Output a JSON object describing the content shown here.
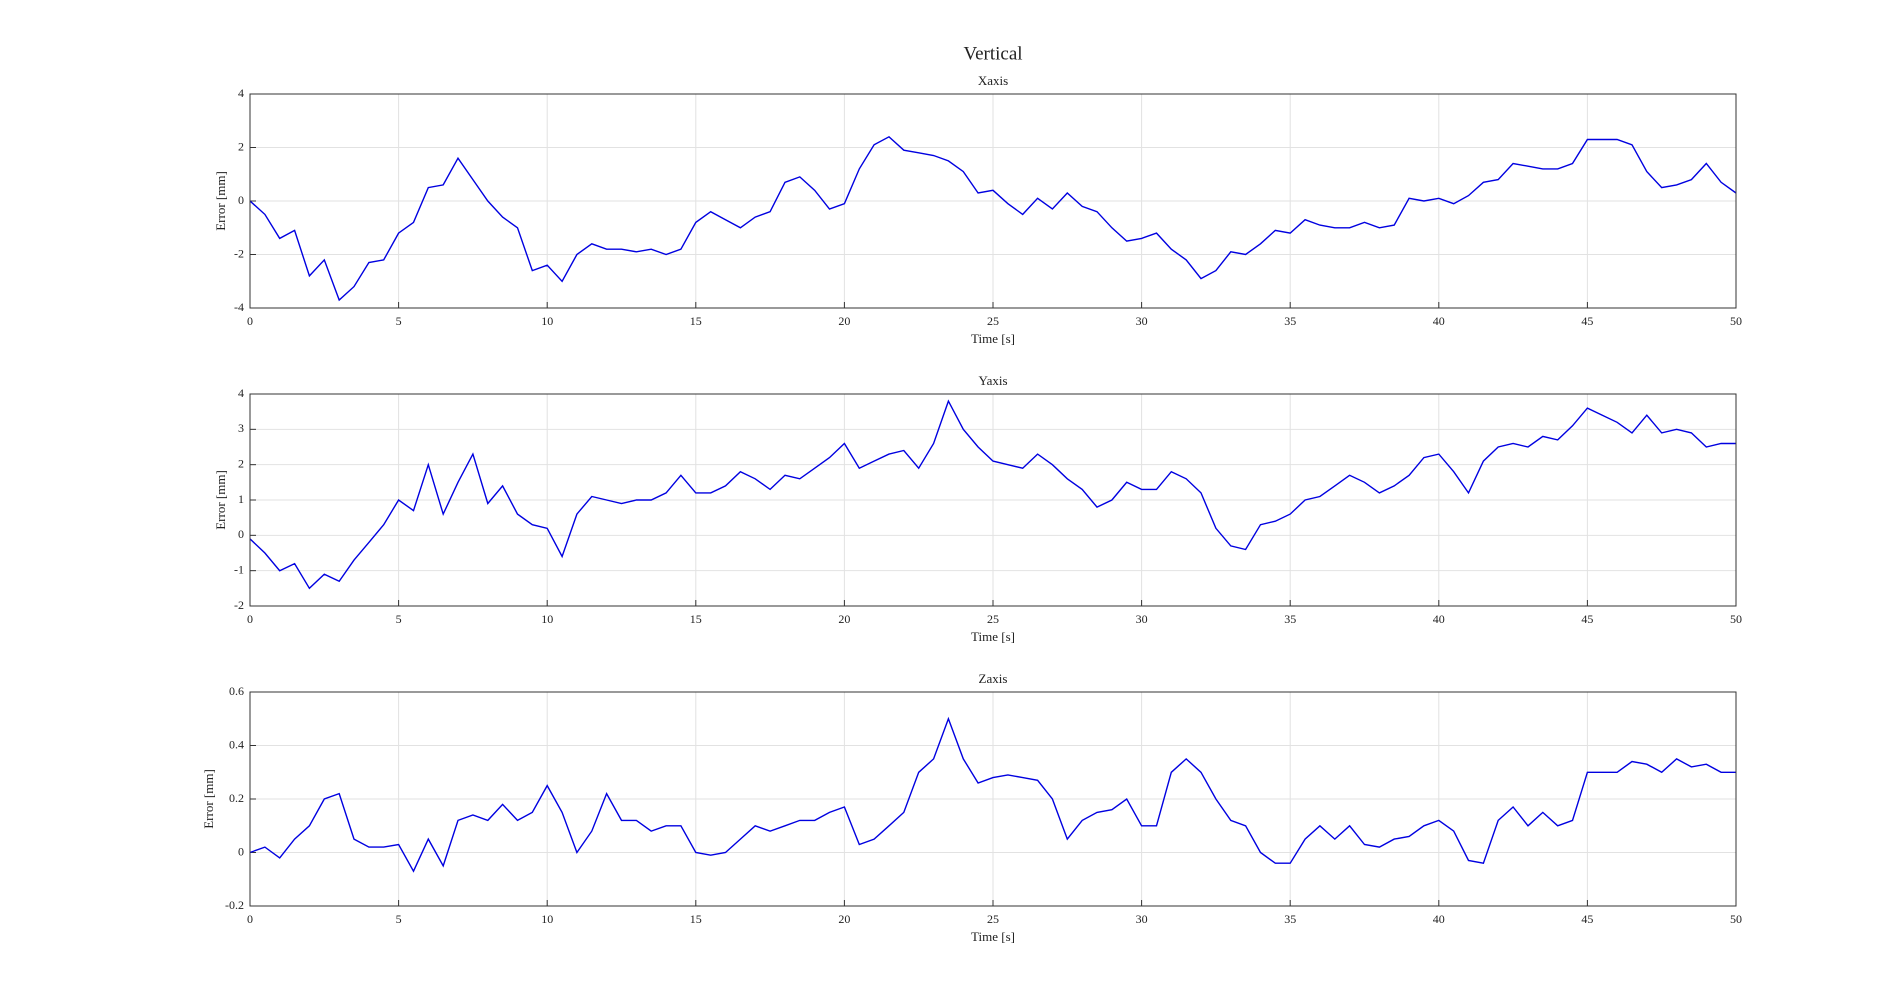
{
  "title": "Vertical",
  "chart_data": [
    {
      "type": "line",
      "title": "Xaxis",
      "xlabel": "Time [s]",
      "ylabel": "Error [mm]",
      "x": [
        0,
        0.5,
        1,
        1.5,
        2,
        2.5,
        3,
        3.5,
        4,
        4.5,
        5,
        5.5,
        6,
        6.5,
        7,
        7.5,
        8,
        8.5,
        9,
        9.5,
        10,
        10.5,
        11,
        11.5,
        12,
        12.5,
        13,
        13.5,
        14,
        14.5,
        15,
        15.5,
        16,
        16.5,
        17,
        17.5,
        18,
        18.5,
        19,
        19.5,
        20,
        20.5,
        21,
        21.5,
        22,
        22.5,
        23,
        23.5,
        24,
        24.5,
        25,
        25.5,
        26,
        26.5,
        27,
        27.5,
        28,
        28.5,
        29,
        29.5,
        30,
        30.5,
        31,
        31.5,
        32,
        32.5,
        33,
        33.5,
        34,
        34.5,
        35,
        35.5,
        36,
        36.5,
        37,
        37.5,
        38,
        38.5,
        39,
        39.5,
        40,
        40.5,
        41,
        41.5,
        42,
        42.5,
        43,
        43.5,
        44,
        44.5,
        45,
        45.5,
        46,
        46.5,
        47,
        47.5,
        48,
        48.5,
        49,
        49.5,
        50
      ],
      "series": [
        {
          "name": "Xaxis",
          "color": "#0000e0",
          "values": [
            0,
            -0.5,
            -1.4,
            -1.1,
            -2.8,
            -2.2,
            -3.7,
            -3.2,
            -2.3,
            -2.2,
            -1.2,
            -0.8,
            0.5,
            0.6,
            1.6,
            0.8,
            0,
            -0.6,
            -1.0,
            -2.6,
            -2.4,
            -3.0,
            -2.0,
            -1.6,
            -1.8,
            -1.8,
            -1.9,
            -1.8,
            -2.0,
            -1.8,
            -0.8,
            -0.4,
            -0.7,
            -1.0,
            -0.6,
            -0.4,
            0.7,
            0.9,
            0.4,
            -0.3,
            -0.1,
            1.2,
            2.1,
            2.4,
            1.9,
            1.8,
            1.7,
            1.5,
            1.1,
            0.3,
            0.4,
            -0.1,
            -0.5,
            0.1,
            -0.3,
            0.3,
            -0.2,
            -0.4,
            -1.0,
            -1.5,
            -1.4,
            -1.2,
            -1.8,
            -2.2,
            -2.9,
            -2.6,
            -1.9,
            -2.0,
            -1.6,
            -1.1,
            -1.2,
            -0.7,
            -0.9,
            -1.0,
            -1.0,
            -0.8,
            -1.0,
            -0.9,
            0.1,
            0.0,
            0.1,
            -0.1,
            0.2,
            0.7,
            0.8,
            1.4,
            1.3,
            1.2,
            1.2,
            1.4,
            2.3,
            2.3,
            2.3,
            2.1,
            1.1,
            0.5,
            0.6,
            0.8,
            1.4,
            0.7,
            0.3
          ]
        }
      ],
      "xlim": [
        0,
        50
      ],
      "xticks": [
        0,
        5,
        10,
        15,
        20,
        25,
        30,
        35,
        40,
        45,
        50
      ],
      "ylim": [
        -4,
        4
      ],
      "yticks": [
        -4,
        -2,
        0,
        2,
        4
      ],
      "grid": true
    },
    {
      "type": "line",
      "title": "Yaxis",
      "xlabel": "Time [s]",
      "ylabel": "Error [mm]",
      "x": [
        0,
        0.5,
        1,
        1.5,
        2,
        2.5,
        3,
        3.5,
        4,
        4.5,
        5,
        5.5,
        6,
        6.5,
        7,
        7.5,
        8,
        8.5,
        9,
        9.5,
        10,
        10.5,
        11,
        11.5,
        12,
        12.5,
        13,
        13.5,
        14,
        14.5,
        15,
        15.5,
        16,
        16.5,
        17,
        17.5,
        18,
        18.5,
        19,
        19.5,
        20,
        20.5,
        21,
        21.5,
        22,
        22.5,
        23,
        23.5,
        24,
        24.5,
        25,
        25.5,
        26,
        26.5,
        27,
        27.5,
        28,
        28.5,
        29,
        29.5,
        30,
        30.5,
        31,
        31.5,
        32,
        32.5,
        33,
        33.5,
        34,
        34.5,
        35,
        35.5,
        36,
        36.5,
        37,
        37.5,
        38,
        38.5,
        39,
        39.5,
        40,
        40.5,
        41,
        41.5,
        42,
        42.5,
        43,
        43.5,
        44,
        44.5,
        45,
        45.5,
        46,
        46.5,
        47,
        47.5,
        48,
        48.5,
        49,
        49.5,
        50
      ],
      "series": [
        {
          "name": "Yaxis",
          "color": "#0000e0",
          "values": [
            -0.1,
            -0.5,
            -1.0,
            -0.8,
            -1.5,
            -1.1,
            -1.3,
            -0.7,
            -0.2,
            0.3,
            1.0,
            0.7,
            2.0,
            0.6,
            1.5,
            2.3,
            0.9,
            1.4,
            0.6,
            0.3,
            0.2,
            -0.6,
            0.6,
            1.1,
            1.0,
            0.9,
            1.0,
            1.0,
            1.2,
            1.7,
            1.2,
            1.2,
            1.4,
            1.8,
            1.6,
            1.3,
            1.7,
            1.6,
            1.9,
            2.2,
            2.6,
            1.9,
            2.1,
            2.3,
            2.4,
            1.9,
            2.6,
            3.8,
            3.0,
            2.5,
            2.1,
            2.0,
            1.9,
            2.3,
            2.0,
            1.6,
            1.3,
            0.8,
            1.0,
            1.5,
            1.3,
            1.3,
            1.8,
            1.6,
            1.2,
            0.2,
            -0.3,
            -0.4,
            0.3,
            0.4,
            0.6,
            1.0,
            1.1,
            1.4,
            1.7,
            1.5,
            1.2,
            1.4,
            1.7,
            2.2,
            2.3,
            1.8,
            1.2,
            2.1,
            2.5,
            2.6,
            2.5,
            2.8,
            2.7,
            3.1,
            3.6,
            3.4,
            3.2,
            2.9,
            3.4,
            2.9,
            3.0,
            2.9,
            2.5,
            2.6,
            2.6
          ]
        }
      ],
      "xlim": [
        0,
        50
      ],
      "xticks": [
        0,
        5,
        10,
        15,
        20,
        25,
        30,
        35,
        40,
        45,
        50
      ],
      "ylim": [
        -2,
        4
      ],
      "yticks": [
        -2,
        -1,
        0,
        1,
        2,
        3,
        4
      ],
      "grid": true
    },
    {
      "type": "line",
      "title": "Zaxis",
      "xlabel": "Time [s]",
      "ylabel": "Error [mm]",
      "x": [
        0,
        0.5,
        1,
        1.5,
        2,
        2.5,
        3,
        3.5,
        4,
        4.5,
        5,
        5.5,
        6,
        6.5,
        7,
        7.5,
        8,
        8.5,
        9,
        9.5,
        10,
        10.5,
        11,
        11.5,
        12,
        12.5,
        13,
        13.5,
        14,
        14.5,
        15,
        15.5,
        16,
        16.5,
        17,
        17.5,
        18,
        18.5,
        19,
        19.5,
        20,
        20.5,
        21,
        21.5,
        22,
        22.5,
        23,
        23.5,
        24,
        24.5,
        25,
        25.5,
        26,
        26.5,
        27,
        27.5,
        28,
        28.5,
        29,
        29.5,
        30,
        30.5,
        31,
        31.5,
        32,
        32.5,
        33,
        33.5,
        34,
        34.5,
        35,
        35.5,
        36,
        36.5,
        37,
        37.5,
        38,
        38.5,
        39,
        39.5,
        40,
        40.5,
        41,
        41.5,
        42,
        42.5,
        43,
        43.5,
        44,
        44.5,
        45,
        45.5,
        46,
        46.5,
        47,
        47.5,
        48,
        48.5,
        49,
        49.5,
        50
      ],
      "series": [
        {
          "name": "Zaxis",
          "color": "#0000e0",
          "values": [
            0,
            0.02,
            -0.02,
            0.05,
            0.1,
            0.2,
            0.22,
            0.05,
            0.02,
            0.02,
            0.03,
            -0.07,
            0.05,
            -0.05,
            0.12,
            0.14,
            0.12,
            0.18,
            0.12,
            0.15,
            0.25,
            0.15,
            0.0,
            0.08,
            0.22,
            0.12,
            0.12,
            0.08,
            0.1,
            0.1,
            0.0,
            -0.01,
            0.0,
            0.05,
            0.1,
            0.08,
            0.1,
            0.12,
            0.12,
            0.15,
            0.17,
            0.03,
            0.05,
            0.1,
            0.15,
            0.3,
            0.35,
            0.5,
            0.35,
            0.26,
            0.28,
            0.29,
            0.28,
            0.27,
            0.2,
            0.05,
            0.12,
            0.15,
            0.16,
            0.2,
            0.1,
            0.1,
            0.3,
            0.35,
            0.3,
            0.2,
            0.12,
            0.1,
            0.0,
            -0.04,
            -0.04,
            0.05,
            0.1,
            0.05,
            0.1,
            0.03,
            0.02,
            0.05,
            0.06,
            0.1,
            0.12,
            0.08,
            -0.03,
            -0.04,
            0.12,
            0.17,
            0.1,
            0.15,
            0.1,
            0.12,
            0.3,
            0.3,
            0.3,
            0.34,
            0.33,
            0.3,
            0.35,
            0.32,
            0.33,
            0.3,
            0.3
          ]
        }
      ],
      "xlim": [
        0,
        50
      ],
      "xticks": [
        0,
        5,
        10,
        15,
        20,
        25,
        30,
        35,
        40,
        45,
        50
      ],
      "ylim": [
        -0.2,
        0.6
      ],
      "yticks": [
        -0.2,
        0,
        0.2,
        0.4,
        0.6
      ],
      "grid": true
    }
  ]
}
